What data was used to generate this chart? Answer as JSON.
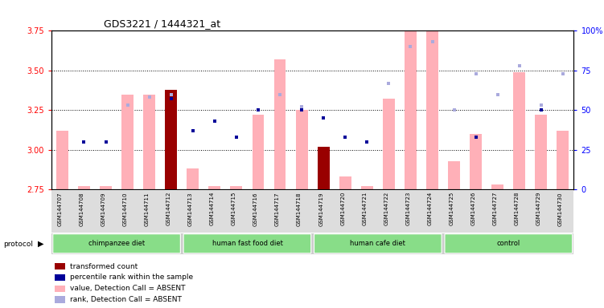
{
  "title": "GDS3221 / 1444321_at",
  "samples": [
    "GSM144707",
    "GSM144708",
    "GSM144709",
    "GSM144710",
    "GSM144711",
    "GSM144712",
    "GSM144713",
    "GSM144714",
    "GSM144715",
    "GSM144716",
    "GSM144717",
    "GSM144718",
    "GSM144719",
    "GSM144720",
    "GSM144721",
    "GSM144722",
    "GSM144723",
    "GSM144724",
    "GSM144725",
    "GSM144726",
    "GSM144727",
    "GSM144728",
    "GSM144729",
    "GSM144730"
  ],
  "pink_bar_tops": [
    3.12,
    2.77,
    2.77,
    3.35,
    3.35,
    3.38,
    2.88,
    2.77,
    2.77,
    3.22,
    3.57,
    3.25,
    3.02,
    2.83,
    2.77,
    3.32,
    3.78,
    3.87,
    2.93,
    3.1,
    2.78,
    3.49,
    3.22,
    3.12
  ],
  "red_bar_tops": [
    null,
    null,
    null,
    null,
    null,
    3.38,
    null,
    null,
    null,
    null,
    null,
    null,
    3.02,
    null,
    null,
    null,
    null,
    null,
    null,
    null,
    null,
    null,
    null,
    null
  ],
  "blue_sq_y": [
    null,
    3.05,
    3.05,
    null,
    null,
    3.32,
    3.12,
    3.18,
    3.08,
    3.25,
    null,
    3.25,
    3.2,
    3.08,
    3.05,
    null,
    null,
    null,
    null,
    3.08,
    null,
    null,
    3.25,
    null
  ],
  "lblue_sq_y": [
    null,
    null,
    null,
    3.28,
    3.33,
    3.35,
    null,
    null,
    null,
    null,
    3.35,
    3.27,
    null,
    null,
    null,
    3.42,
    3.65,
    3.68,
    3.25,
    3.48,
    3.35,
    3.53,
    3.28,
    3.48
  ],
  "group_defs": [
    [
      0,
      6,
      "chimpanzee diet"
    ],
    [
      6,
      12,
      "human fast food diet"
    ],
    [
      12,
      18,
      "human cafe diet"
    ],
    [
      18,
      24,
      "control"
    ]
  ],
  "ylim": [
    2.75,
    3.75
  ],
  "y_ticks_left": [
    2.75,
    3.0,
    3.25,
    3.5,
    3.75
  ],
  "y_ticks_right": [
    0,
    25,
    50,
    75,
    100
  ],
  "pink_color": "#FFB0B8",
  "red_color": "#990000",
  "blue_color": "#000099",
  "light_blue_color": "#AAAADD",
  "green_color": "#88DD88"
}
